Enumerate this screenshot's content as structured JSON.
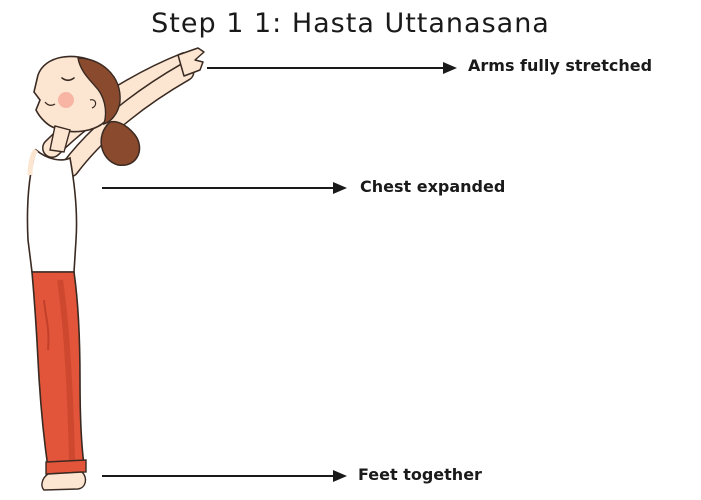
{
  "title": "Step 1 1: Hasta Uttanasana",
  "annotations": [
    {
      "label": "Arms fully stretched"
    },
    {
      "label": "Chest expanded"
    },
    {
      "label": "Feet together"
    }
  ],
  "colors": {
    "pants": "#e2553a",
    "pants_shadow": "#c2402a",
    "skin": "#fce6d2",
    "hair": "#8a4a2e",
    "top": "#ffffff",
    "outline": "#3a2a22",
    "arrow": "#1a1a1a",
    "cheek": "#f7a999"
  }
}
